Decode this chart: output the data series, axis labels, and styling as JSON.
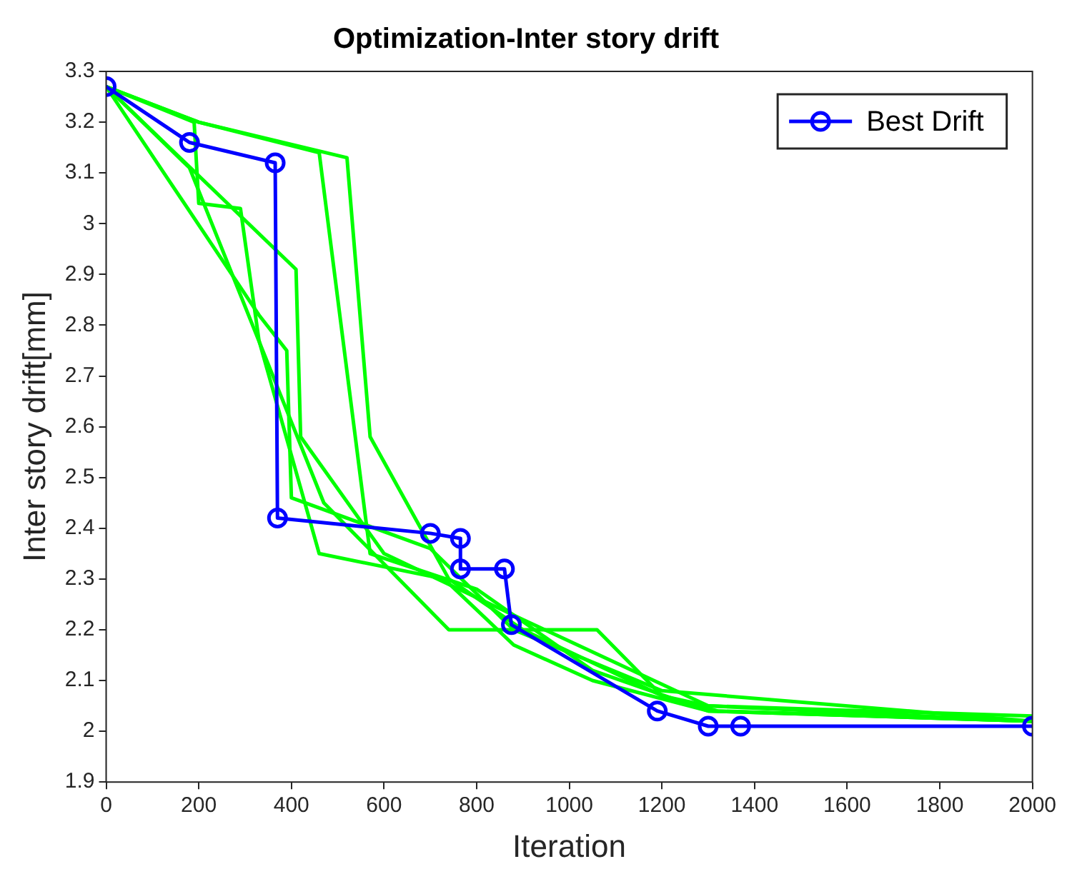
{
  "chart_data": {
    "type": "line",
    "title": "Optimization-Inter story drift",
    "xlabel": "Iteration",
    "ylabel": "Inter story drift[mm]",
    "xlim": [
      0,
      2000
    ],
    "xticks": [
      0,
      200,
      400,
      600,
      800,
      1000,
      1200,
      1400,
      1600,
      1800,
      2000
    ],
    "ylim": [
      1.9,
      3.3
    ],
    "yticks": [
      1.9,
      2,
      2.1,
      2.2,
      2.3,
      2.4,
      2.5,
      2.6,
      2.7,
      2.8,
      2.9,
      3,
      3.1,
      3.2,
      3.3
    ],
    "grid": false,
    "legend": "top right",
    "line_style": "solid",
    "series": [
      {
        "color": "#00ff00",
        "marker": "none",
        "x": [
          0,
          190,
          200,
          290,
          330,
          460,
          730,
          880,
          1050,
          1300,
          2000
        ],
        "values": [
          3.27,
          3.2,
          3.04,
          3.03,
          2.77,
          2.35,
          2.3,
          2.17,
          2.1,
          2.04,
          2.02
        ]
      },
      {
        "color": "#00ff00",
        "marker": "none",
        "x": [
          0,
          180,
          470,
          740,
          1060,
          1200,
          1320,
          2000
        ],
        "values": [
          3.27,
          3.11,
          2.45,
          2.2,
          2.2,
          2.07,
          2.04,
          2.02
        ]
      },
      {
        "color": "#00ff00",
        "marker": "none",
        "x": [
          0,
          410,
          420,
          600,
          900,
          1300,
          2000
        ],
        "values": [
          3.27,
          2.91,
          2.58,
          2.35,
          2.22,
          2.05,
          2.03
        ]
      },
      {
        "color": "#00ff00",
        "marker": "none",
        "x": [
          0,
          200,
          460,
          570,
          800,
          1050,
          1300,
          2000
        ],
        "values": [
          3.27,
          3.2,
          3.14,
          2.35,
          2.28,
          2.12,
          2.04,
          2.02
        ]
      },
      {
        "color": "#00ff00",
        "marker": "none",
        "x": [
          0,
          200,
          520,
          570,
          740,
          900,
          1200,
          1300,
          2000
        ],
        "values": [
          3.27,
          3.2,
          3.13,
          2.58,
          2.3,
          2.2,
          2.07,
          2.05,
          2.02
        ]
      },
      {
        "color": "#00ff00",
        "marker": "none",
        "x": [
          0,
          330,
          390,
          400,
          700,
          880,
          1200,
          2000
        ],
        "values": [
          3.27,
          2.82,
          2.75,
          2.46,
          2.36,
          2.2,
          2.08,
          2.02
        ]
      },
      {
        "name": "Best Drift",
        "color": "#0000ff",
        "marker": "circle",
        "x": [
          0,
          180,
          365,
          370,
          700,
          765,
          765,
          860,
          875,
          1190,
          1300,
          1370,
          2000
        ],
        "values": [
          3.27,
          3.16,
          3.12,
          2.42,
          2.39,
          2.38,
          2.32,
          2.32,
          2.21,
          2.04,
          2.01,
          2.01,
          2.01
        ]
      }
    ]
  }
}
